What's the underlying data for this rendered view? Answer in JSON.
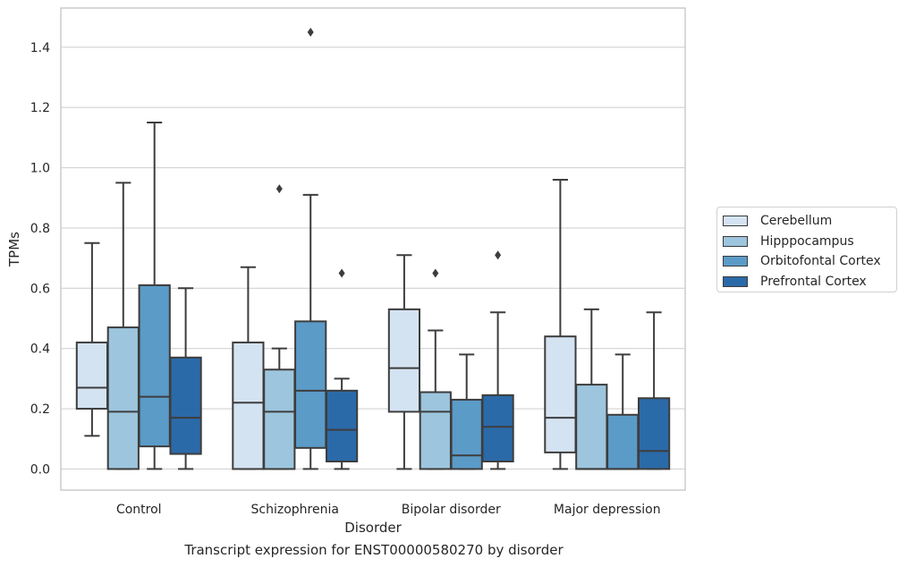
{
  "caption": "Transcript expression for ENST00000580270 by disorder",
  "chart_data": {
    "type": "box",
    "xlabel": "Disorder",
    "ylabel": "TPMs",
    "ylim": [
      -0.07,
      1.53
    ],
    "yticks": [
      0.0,
      0.2,
      0.4,
      0.6,
      0.8,
      1.0,
      1.2,
      1.4
    ],
    "ytick_labels": [
      "0.0",
      "0.2",
      "0.4",
      "0.6",
      "0.8",
      "1.0",
      "1.2",
      "1.4"
    ],
    "grid": "horizontal",
    "legend_position": "right",
    "categories": [
      "Control",
      "Schizophrenia",
      "Bipolar disorder",
      "Major depression"
    ],
    "series": [
      {
        "name": "Cerebellum",
        "color": "#d4e3f2",
        "boxes": [
          {
            "whislo": 0.11,
            "q1": 0.2,
            "med": 0.27,
            "q3": 0.42,
            "whishi": 0.75,
            "fliers": []
          },
          {
            "whislo": 0.0,
            "q1": 0.0,
            "med": 0.22,
            "q3": 0.42,
            "whishi": 0.67,
            "fliers": []
          },
          {
            "whislo": 0.0,
            "q1": 0.19,
            "med": 0.335,
            "q3": 0.53,
            "whishi": 0.71,
            "fliers": []
          },
          {
            "whislo": 0.0,
            "q1": 0.055,
            "med": 0.17,
            "q3": 0.44,
            "whishi": 0.96,
            "fliers": []
          }
        ]
      },
      {
        "name": "Hipppocampus",
        "color": "#9dc5de",
        "boxes": [
          {
            "whislo": 0.0,
            "q1": 0.0,
            "med": 0.19,
            "q3": 0.47,
            "whishi": 0.95,
            "fliers": []
          },
          {
            "whislo": 0.0,
            "q1": 0.0,
            "med": 0.19,
            "q3": 0.33,
            "whishi": 0.4,
            "fliers": [
              0.93
            ]
          },
          {
            "whislo": 0.0,
            "q1": 0.0,
            "med": 0.19,
            "q3": 0.255,
            "whishi": 0.46,
            "fliers": [
              0.65
            ]
          },
          {
            "whislo": 0.0,
            "q1": 0.0,
            "med": 0.0,
            "q3": 0.28,
            "whishi": 0.53,
            "fliers": []
          }
        ]
      },
      {
        "name": "Orbitofontal Cortex",
        "color": "#5b9bc8",
        "boxes": [
          {
            "whislo": 0.0,
            "q1": 0.075,
            "med": 0.24,
            "q3": 0.61,
            "whishi": 1.15,
            "fliers": []
          },
          {
            "whislo": 0.0,
            "q1": 0.07,
            "med": 0.26,
            "q3": 0.49,
            "whishi": 0.91,
            "fliers": [
              1.45
            ]
          },
          {
            "whislo": 0.0,
            "q1": 0.0,
            "med": 0.045,
            "q3": 0.23,
            "whishi": 0.38,
            "fliers": []
          },
          {
            "whislo": 0.0,
            "q1": 0.0,
            "med": 0.0,
            "q3": 0.18,
            "whishi": 0.38,
            "fliers": []
          }
        ]
      },
      {
        "name": "Prefrontal Cortex",
        "color": "#2b6aa8",
        "boxes": [
          {
            "whislo": 0.0,
            "q1": 0.05,
            "med": 0.17,
            "q3": 0.37,
            "whishi": 0.6,
            "fliers": []
          },
          {
            "whislo": 0.0,
            "q1": 0.025,
            "med": 0.13,
            "q3": 0.26,
            "whishi": 0.3,
            "fliers": [
              0.65
            ]
          },
          {
            "whislo": 0.0,
            "q1": 0.025,
            "med": 0.14,
            "q3": 0.245,
            "whishi": 0.52,
            "fliers": [
              0.71
            ]
          },
          {
            "whislo": 0.0,
            "q1": 0.0,
            "med": 0.06,
            "q3": 0.235,
            "whishi": 0.52,
            "fliers": []
          }
        ]
      }
    ]
  }
}
